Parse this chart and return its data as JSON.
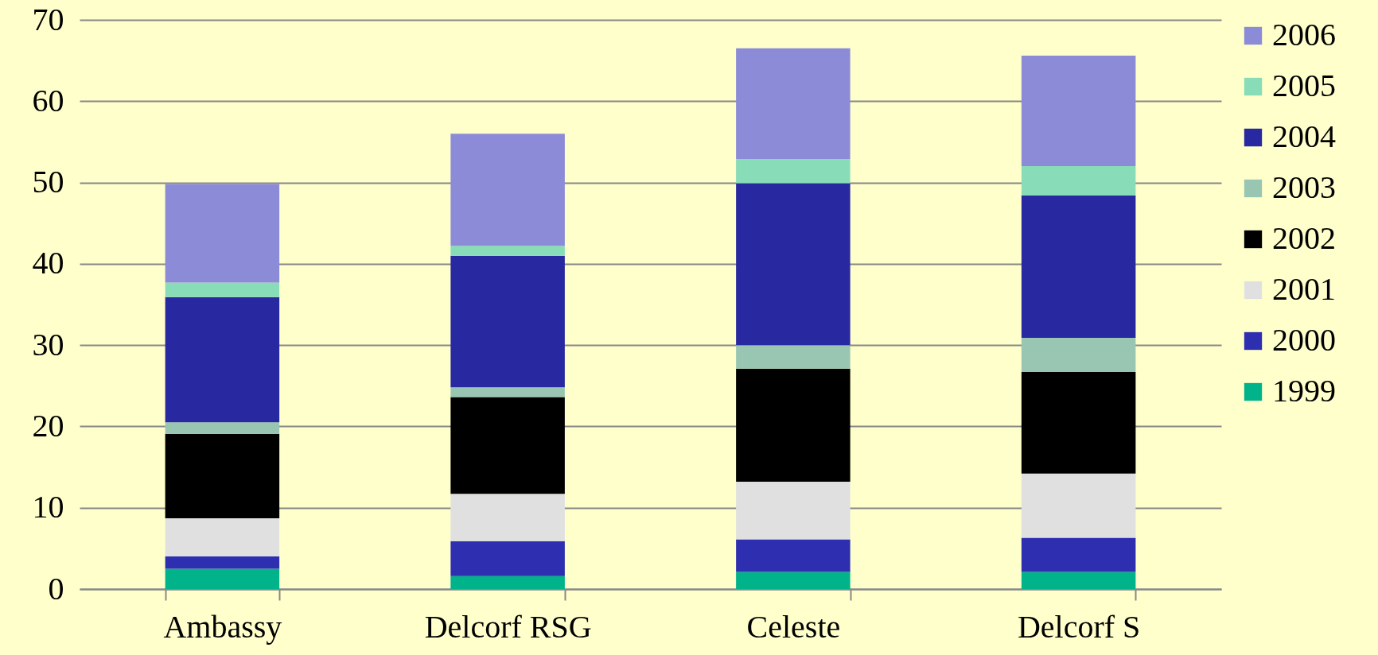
{
  "chart_data": {
    "type": "bar",
    "stacked": true,
    "categories": [
      "Ambassy",
      "Delcorf RSG",
      "Celeste",
      "Delcorf S"
    ],
    "series": [
      {
        "name": "1999",
        "color": "#00b38a",
        "values": [
          2.5,
          1.6,
          2.1,
          2.1
        ]
      },
      {
        "name": "2000",
        "color": "#2e2eb0",
        "values": [
          1.5,
          4.3,
          4.0,
          4.2
        ]
      },
      {
        "name": "2001",
        "color": "#e0e0e0",
        "values": [
          4.7,
          5.8,
          7.1,
          7.9
        ]
      },
      {
        "name": "2002",
        "color": "#000000",
        "values": [
          10.4,
          11.9,
          13.9,
          12.5
        ]
      },
      {
        "name": "2003",
        "color": "#99c6b3",
        "values": [
          1.4,
          1.2,
          2.9,
          4.2
        ]
      },
      {
        "name": "2004",
        "color": "#2828a0",
        "values": [
          15.4,
          16.2,
          19.9,
          17.5
        ]
      },
      {
        "name": "2005",
        "color": "#88dcb8",
        "values": [
          1.8,
          1.2,
          3.0,
          3.6
        ]
      },
      {
        "name": "2006",
        "color": "#8b8bd8",
        "values": [
          12.1,
          13.8,
          13.6,
          13.6
        ]
      }
    ],
    "ylim": [
      0,
      70
    ],
    "yticks": [
      0,
      10,
      20,
      30,
      40,
      50,
      60,
      70
    ],
    "grid": "y",
    "legend": "right"
  }
}
